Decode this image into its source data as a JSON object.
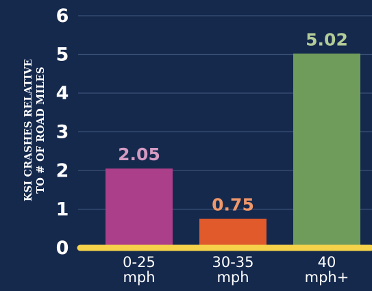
{
  "chart_data": {
    "type": "bar",
    "ylabel_lines": [
      "KSI CRASHES RELATIVE",
      "TO # OF ROAD MILES"
    ],
    "categories": [
      {
        "lines": [
          "0-25",
          "mph"
        ]
      },
      {
        "lines": [
          "30-35",
          "mph"
        ]
      },
      {
        "lines": [
          "40",
          "mph+"
        ]
      }
    ],
    "values": [
      2.05,
      0.75,
      5.02
    ],
    "value_labels": [
      "2.05",
      "0.75",
      "5.02"
    ],
    "ylim": [
      0,
      6
    ],
    "yticks": [
      0,
      1,
      2,
      3,
      4,
      5,
      6
    ],
    "grid": true,
    "legend": "none"
  },
  "colors": {
    "background": "#15294d",
    "gridline": "#3a5276",
    "axis_line": "#f5d24a",
    "tick_text": "#ffffff",
    "bars": [
      "#ac3f89",
      "#e05a2c",
      "#6f9c5a"
    ],
    "value_labels": [
      "#d49ac2",
      "#f0976a",
      "#b3cc98"
    ]
  }
}
